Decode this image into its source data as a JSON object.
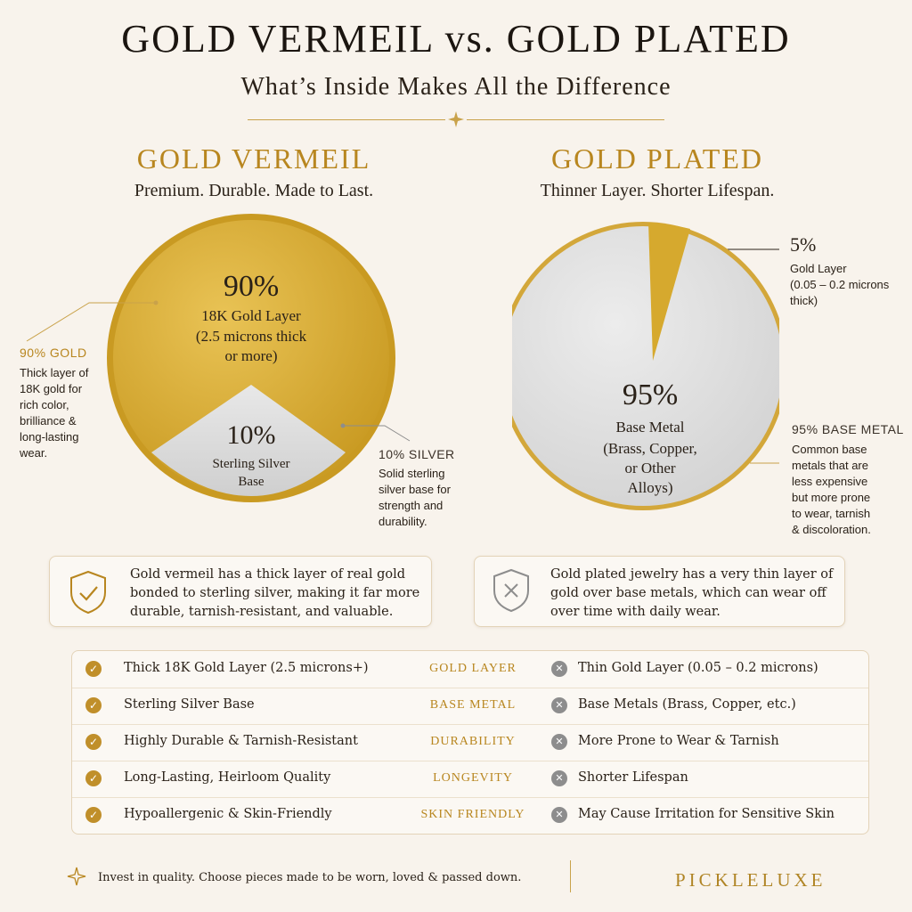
{
  "header": {
    "title": "GOLD VERMEIL vs. GOLD PLATED",
    "subtitle": "What’s Inside Makes All the Difference"
  },
  "vermeil": {
    "title": "GOLD VERMEIL",
    "tagline": "Premium. Durable. Made to Last.",
    "gold_pct": "90%",
    "gold_line1": "18K Gold Layer",
    "gold_line2": "(2.5 microns thick",
    "gold_line3": "or more)",
    "silver_pct": "10%",
    "silver_line1": "Sterling Silver",
    "silver_line2": "Base",
    "callout_gold_title": "90% GOLD",
    "callout_gold_body": [
      "Thick layer of",
      "18K gold for",
      "rich color,",
      "brilliance &",
      "long-lasting",
      "wear."
    ],
    "callout_silver_title": "10% SILVER",
    "callout_silver_body": [
      "Solid sterling",
      "silver base for",
      "strength and",
      "durability."
    ],
    "info": [
      "Gold vermeil has a thick layer of real gold",
      "bonded to sterling silver, making it far more",
      "durable, tarnish-resistant, and valuable."
    ]
  },
  "plated": {
    "title": "GOLD PLATED",
    "tagline": "Thinner Layer. Shorter Lifespan.",
    "gold_pct": "5%",
    "gold_body": [
      "Gold Layer",
      "(0.05 – 0.2 microns",
      "thick)"
    ],
    "base_pct": "95%",
    "base_line1": "Base Metal",
    "base_line2": "(Brass, Copper,",
    "base_line3": "or Other",
    "base_line4": "Alloys)",
    "callout_base_title": "95% BASE METAL",
    "callout_base_body": [
      "Common base",
      "metals that are",
      "less expensive",
      "but more prone",
      "to wear, tarnish",
      "& discoloration."
    ],
    "info": [
      "Gold plated jewelry has a very thin layer of",
      "gold over base metals, which can wear off",
      "over time with daily wear."
    ]
  },
  "table": {
    "rows": [
      {
        "left": "Thick 18K Gold Layer (2.5 microns+)",
        "mid": "GOLD LAYER",
        "right": "Thin Gold Layer (0.05 – 0.2 microns)"
      },
      {
        "left": "Sterling Silver Base",
        "mid": "BASE METAL",
        "right": "Base Metals (Brass, Copper, etc.)"
      },
      {
        "left": "Highly Durable & Tarnish-Resistant",
        "mid": "DURABILITY",
        "right": "More Prone to Wear & Tarnish"
      },
      {
        "left": "Long-Lasting, Heirloom Quality",
        "mid": "LONGEVITY",
        "right": "Shorter Lifespan"
      },
      {
        "left": "Hypoallergenic & Skin-Friendly",
        "mid": "SKIN FRIENDLY",
        "right": "May Cause Irritation for Sensitive Skin"
      }
    ]
  },
  "footer": {
    "text": "Invest in quality. Choose pieces made to be worn, loved & passed down.",
    "brand": "PICKLELUXE"
  },
  "colors": {
    "gold": "#d9ad34",
    "silver": "#dcdcdc",
    "accent": "#b8861f",
    "background": "#f8f3ec"
  },
  "chart_data": [
    {
      "type": "pie",
      "title": "GOLD VERMEIL",
      "categories": [
        "18K Gold Layer",
        "Sterling Silver Base"
      ],
      "values": [
        90,
        10
      ],
      "colors": [
        "#d9ad34",
        "#dcdcdc"
      ]
    },
    {
      "type": "pie",
      "title": "GOLD PLATED",
      "categories": [
        "Gold Layer",
        "Base Metal"
      ],
      "values": [
        5,
        95
      ],
      "colors": [
        "#d9ad34",
        "#dcdcdc"
      ]
    }
  ]
}
